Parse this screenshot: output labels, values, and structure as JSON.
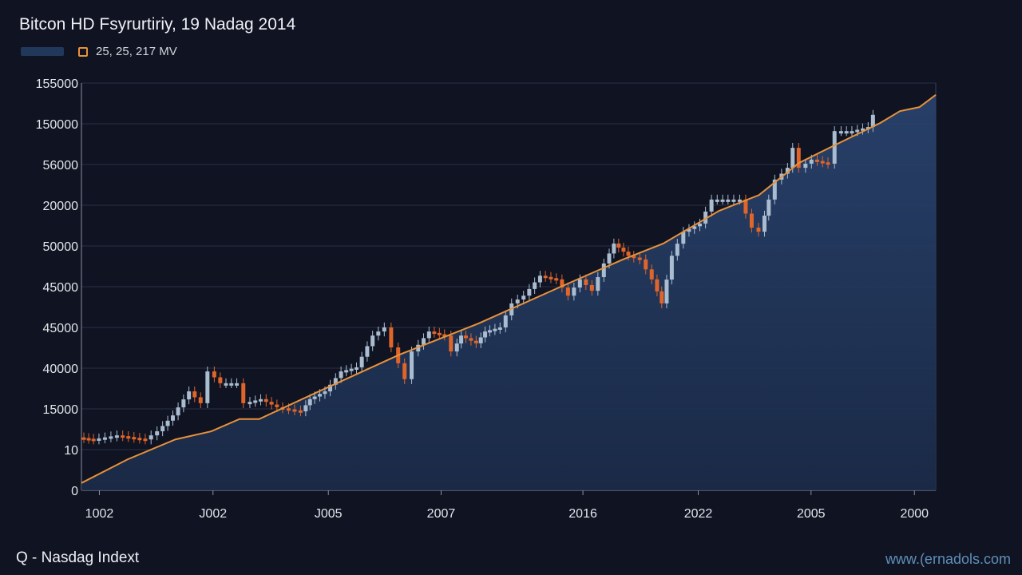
{
  "header": {
    "title": "Bitcon HD Fsyrurtiriy, 19 Nadag 2014",
    "legend_label": "25, 25, 217 MV"
  },
  "footer": {
    "left": "Q - Nasdag Indext",
    "right": "www.(ernadols.com"
  },
  "colors": {
    "up": "#a9bcd0",
    "down": "#e0652a",
    "line": "#e8923a",
    "area": "#22385a",
    "grid": "#2a3246"
  },
  "chart_data": {
    "type": "line",
    "title": "Bitcon HD Fsyrurtiriy, 19 Nadag 2014",
    "xlim": [
      0,
      100
    ],
    "ylim": [
      0,
      10
    ],
    "y_ticks": [
      {
        "v": 10,
        "label": "155000"
      },
      {
        "v": 9,
        "label": "150000"
      },
      {
        "v": 8,
        "label": "56000"
      },
      {
        "v": 7,
        "label": "20000"
      },
      {
        "v": 6,
        "label": "50000"
      },
      {
        "v": 5,
        "label": "45000"
      },
      {
        "v": 4,
        "label": "45000"
      },
      {
        "v": 3,
        "label": "40000"
      },
      {
        "v": 2,
        "label": "15000"
      },
      {
        "v": 1,
        "label": "10"
      },
      {
        "v": 0,
        "label": "0"
      }
    ],
    "x_ticks": [
      {
        "t": 2.1,
        "label": "1002"
      },
      {
        "t": 15.4,
        "label": "J002"
      },
      {
        "t": 28.9,
        "label": "J005"
      },
      {
        "t": 42.1,
        "label": "2007"
      },
      {
        "t": 58.7,
        "label": "2016"
      },
      {
        "t": 72.2,
        "label": "2022"
      },
      {
        "t": 85.4,
        "label": "2005"
      },
      {
        "t": 97.5,
        "label": "2000"
      }
    ],
    "grid": true,
    "candles_close": [
      [
        0,
        1.3
      ],
      [
        1.7,
        1.25
      ],
      [
        4.5,
        1.35
      ],
      [
        7.8,
        1.25
      ],
      [
        9.2,
        1.45
      ],
      [
        11.0,
        1.84
      ],
      [
        12.9,
        2.43
      ],
      [
        14.3,
        2.14
      ],
      [
        15.2,
        2.92
      ],
      [
        16.6,
        2.63
      ],
      [
        18.5,
        2.63
      ],
      [
        19.4,
        2.14
      ],
      [
        21.3,
        2.24
      ],
      [
        23.2,
        2.04
      ],
      [
        26.0,
        1.94
      ],
      [
        27.0,
        2.24
      ],
      [
        28.8,
        2.43
      ],
      [
        30.7,
        2.92
      ],
      [
        32.5,
        3.02
      ],
      [
        34.4,
        3.8
      ],
      [
        35.8,
        4.0
      ],
      [
        36.7,
        3.51
      ],
      [
        38.2,
        2.73
      ],
      [
        39.1,
        3.41
      ],
      [
        41.0,
        3.9
      ],
      [
        42.8,
        3.8
      ],
      [
        43.7,
        3.41
      ],
      [
        44.7,
        3.8
      ],
      [
        46.5,
        3.61
      ],
      [
        47.5,
        3.9
      ],
      [
        49.3,
        4.0
      ],
      [
        50.7,
        4.59
      ],
      [
        52.1,
        4.78
      ],
      [
        54.0,
        5.27
      ],
      [
        55.9,
        5.18
      ],
      [
        57.3,
        4.78
      ],
      [
        58.7,
        5.18
      ],
      [
        60.1,
        4.9
      ],
      [
        61.5,
        5.57
      ],
      [
        62.6,
        6.06
      ],
      [
        64.3,
        5.76
      ],
      [
        65.7,
        5.67
      ],
      [
        67.1,
        5.18
      ],
      [
        68.2,
        4.59
      ],
      [
        69.4,
        5.76
      ],
      [
        70.8,
        6.35
      ],
      [
        72.7,
        6.55
      ],
      [
        74.1,
        7.14
      ],
      [
        76.0,
        7.14
      ],
      [
        77.4,
        7.14
      ],
      [
        78.8,
        6.45
      ],
      [
        79.7,
        6.35
      ],
      [
        80.7,
        7.14
      ],
      [
        81.6,
        7.63
      ],
      [
        83.0,
        7.92
      ],
      [
        83.5,
        8.41
      ],
      [
        84.4,
        7.92
      ],
      [
        85.8,
        8.12
      ],
      [
        87.7,
        8.02
      ],
      [
        88.6,
        8.82
      ],
      [
        90.5,
        8.82
      ],
      [
        92.4,
        8.92
      ],
      [
        92.9,
        9.22
      ]
    ],
    "trend_line": [
      [
        0,
        0.18
      ],
      [
        5.4,
        0.76
      ],
      [
        11.0,
        1.25
      ],
      [
        15.2,
        1.45
      ],
      [
        18.5,
        1.75
      ],
      [
        20.8,
        1.75
      ],
      [
        27.8,
        2.43
      ],
      [
        37.2,
        3.33
      ],
      [
        46.5,
        4.1
      ],
      [
        55.9,
        4.98
      ],
      [
        63.4,
        5.67
      ],
      [
        68.1,
        6.06
      ],
      [
        74.6,
        6.86
      ],
      [
        79.3,
        7.25
      ],
      [
        84.0,
        8.04
      ],
      [
        88.7,
        8.53
      ],
      [
        93.5,
        9.02
      ],
      [
        95.8,
        9.31
      ],
      [
        98.1,
        9.41
      ],
      [
        100,
        9.71
      ]
    ]
  }
}
